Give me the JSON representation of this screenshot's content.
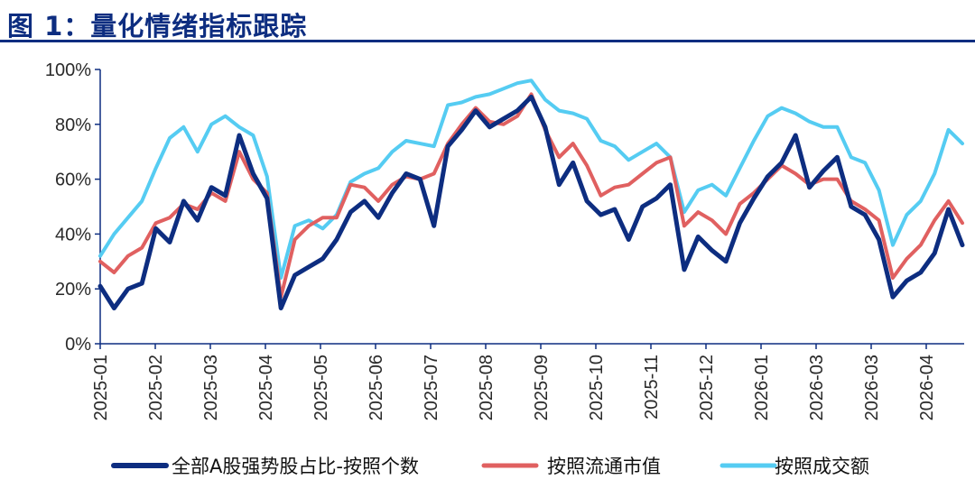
{
  "header": {
    "title": "图 1：量化情绪指标跟踪"
  },
  "colors": {
    "title": "#0d2d80",
    "axis": "#0d2d80"
  },
  "chart_data": {
    "type": "line",
    "title": "图 1：量化情绪指标跟踪",
    "xlabel": "",
    "ylabel": "",
    "ylim": [
      0,
      100
    ],
    "y_ticks": [
      "0%",
      "20%",
      "40%",
      "60%",
      "80%",
      "100%"
    ],
    "x_ticks": [
      "2025-01",
      "2025-02",
      "2025-03",
      "2025-04",
      "2025-05",
      "2025-06",
      "2025-07",
      "2025-08",
      "2025-09",
      "2025-10",
      "2025-11",
      "2025-12",
      "2026-01",
      "2026-03",
      "2026-03",
      "2026-04"
    ],
    "grid": false,
    "legend_position": "bottom",
    "x": [
      "2025-01",
      "2025-01",
      "2025-01",
      "2025-01",
      "2025-02",
      "2025-02",
      "2025-02",
      "2025-02",
      "2025-03",
      "2025-03",
      "2025-03",
      "2025-03",
      "2025-04",
      "2025-04",
      "2025-04",
      "2025-04",
      "2025-05",
      "2025-05",
      "2025-05",
      "2025-05",
      "2025-06",
      "2025-06",
      "2025-06",
      "2025-06",
      "2025-07",
      "2025-07",
      "2025-07",
      "2025-07",
      "2025-08",
      "2025-08",
      "2025-08",
      "2025-08",
      "2025-09",
      "2025-09",
      "2025-09",
      "2025-09",
      "2025-10",
      "2025-10",
      "2025-10",
      "2025-10",
      "2025-11",
      "2025-11",
      "2025-11",
      "2025-11",
      "2025-12",
      "2025-12",
      "2025-12",
      "2025-12",
      "2026-01",
      "2026-01",
      "2026-01",
      "2026-01",
      "2026-03",
      "2026-03",
      "2026-03",
      "2026-03",
      "2026-03",
      "2026-03",
      "2026-03",
      "2026-03",
      "2026-04",
      "2026-04",
      "2026-04"
    ],
    "series": [
      {
        "name": "全部A股强势股占比-按照个数",
        "color": "#0d2d80",
        "values": [
          21,
          13,
          20,
          22,
          42,
          37,
          52,
          45,
          57,
          54,
          76,
          62,
          53,
          13,
          25,
          28,
          31,
          38,
          48,
          52,
          46,
          55,
          62,
          60,
          43,
          72,
          78,
          85,
          79,
          82,
          85,
          90,
          79,
          58,
          66,
          52,
          47,
          49,
          38,
          50,
          53,
          58,
          27,
          39,
          34,
          30,
          44,
          53,
          61,
          66,
          76,
          57,
          63,
          68,
          50,
          47,
          38,
          17,
          23,
          26,
          33,
          49,
          36
        ]
      },
      {
        "name": "按照流通市值",
        "color": "#e06060",
        "values": [
          30,
          26,
          32,
          35,
          44,
          46,
          51,
          49,
          55,
          52,
          70,
          60,
          55,
          17,
          38,
          43,
          46,
          46,
          58,
          57,
          52,
          58,
          61,
          60,
          62,
          73,
          80,
          86,
          81,
          80,
          83,
          91,
          78,
          68,
          73,
          65,
          54,
          57,
          58,
          62,
          66,
          68,
          43,
          48,
          45,
          40,
          51,
          55,
          60,
          65,
          62,
          58,
          60,
          60,
          52,
          49,
          45,
          24,
          31,
          36,
          45,
          52,
          44
        ]
      },
      {
        "name": "按照成交额",
        "color": "#55ccf2",
        "values": [
          32,
          40,
          46,
          52,
          64,
          75,
          79,
          70,
          80,
          83,
          79,
          76,
          61,
          24,
          43,
          45,
          42,
          47,
          59,
          62,
          64,
          70,
          74,
          73,
          72,
          87,
          88,
          90,
          91,
          93,
          95,
          96,
          89,
          85,
          84,
          82,
          74,
          72,
          67,
          70,
          73,
          68,
          48,
          56,
          58,
          54,
          64,
          74,
          83,
          86,
          84,
          81,
          79,
          79,
          68,
          66,
          56,
          36,
          47,
          52,
          62,
          78,
          73
        ]
      }
    ]
  }
}
